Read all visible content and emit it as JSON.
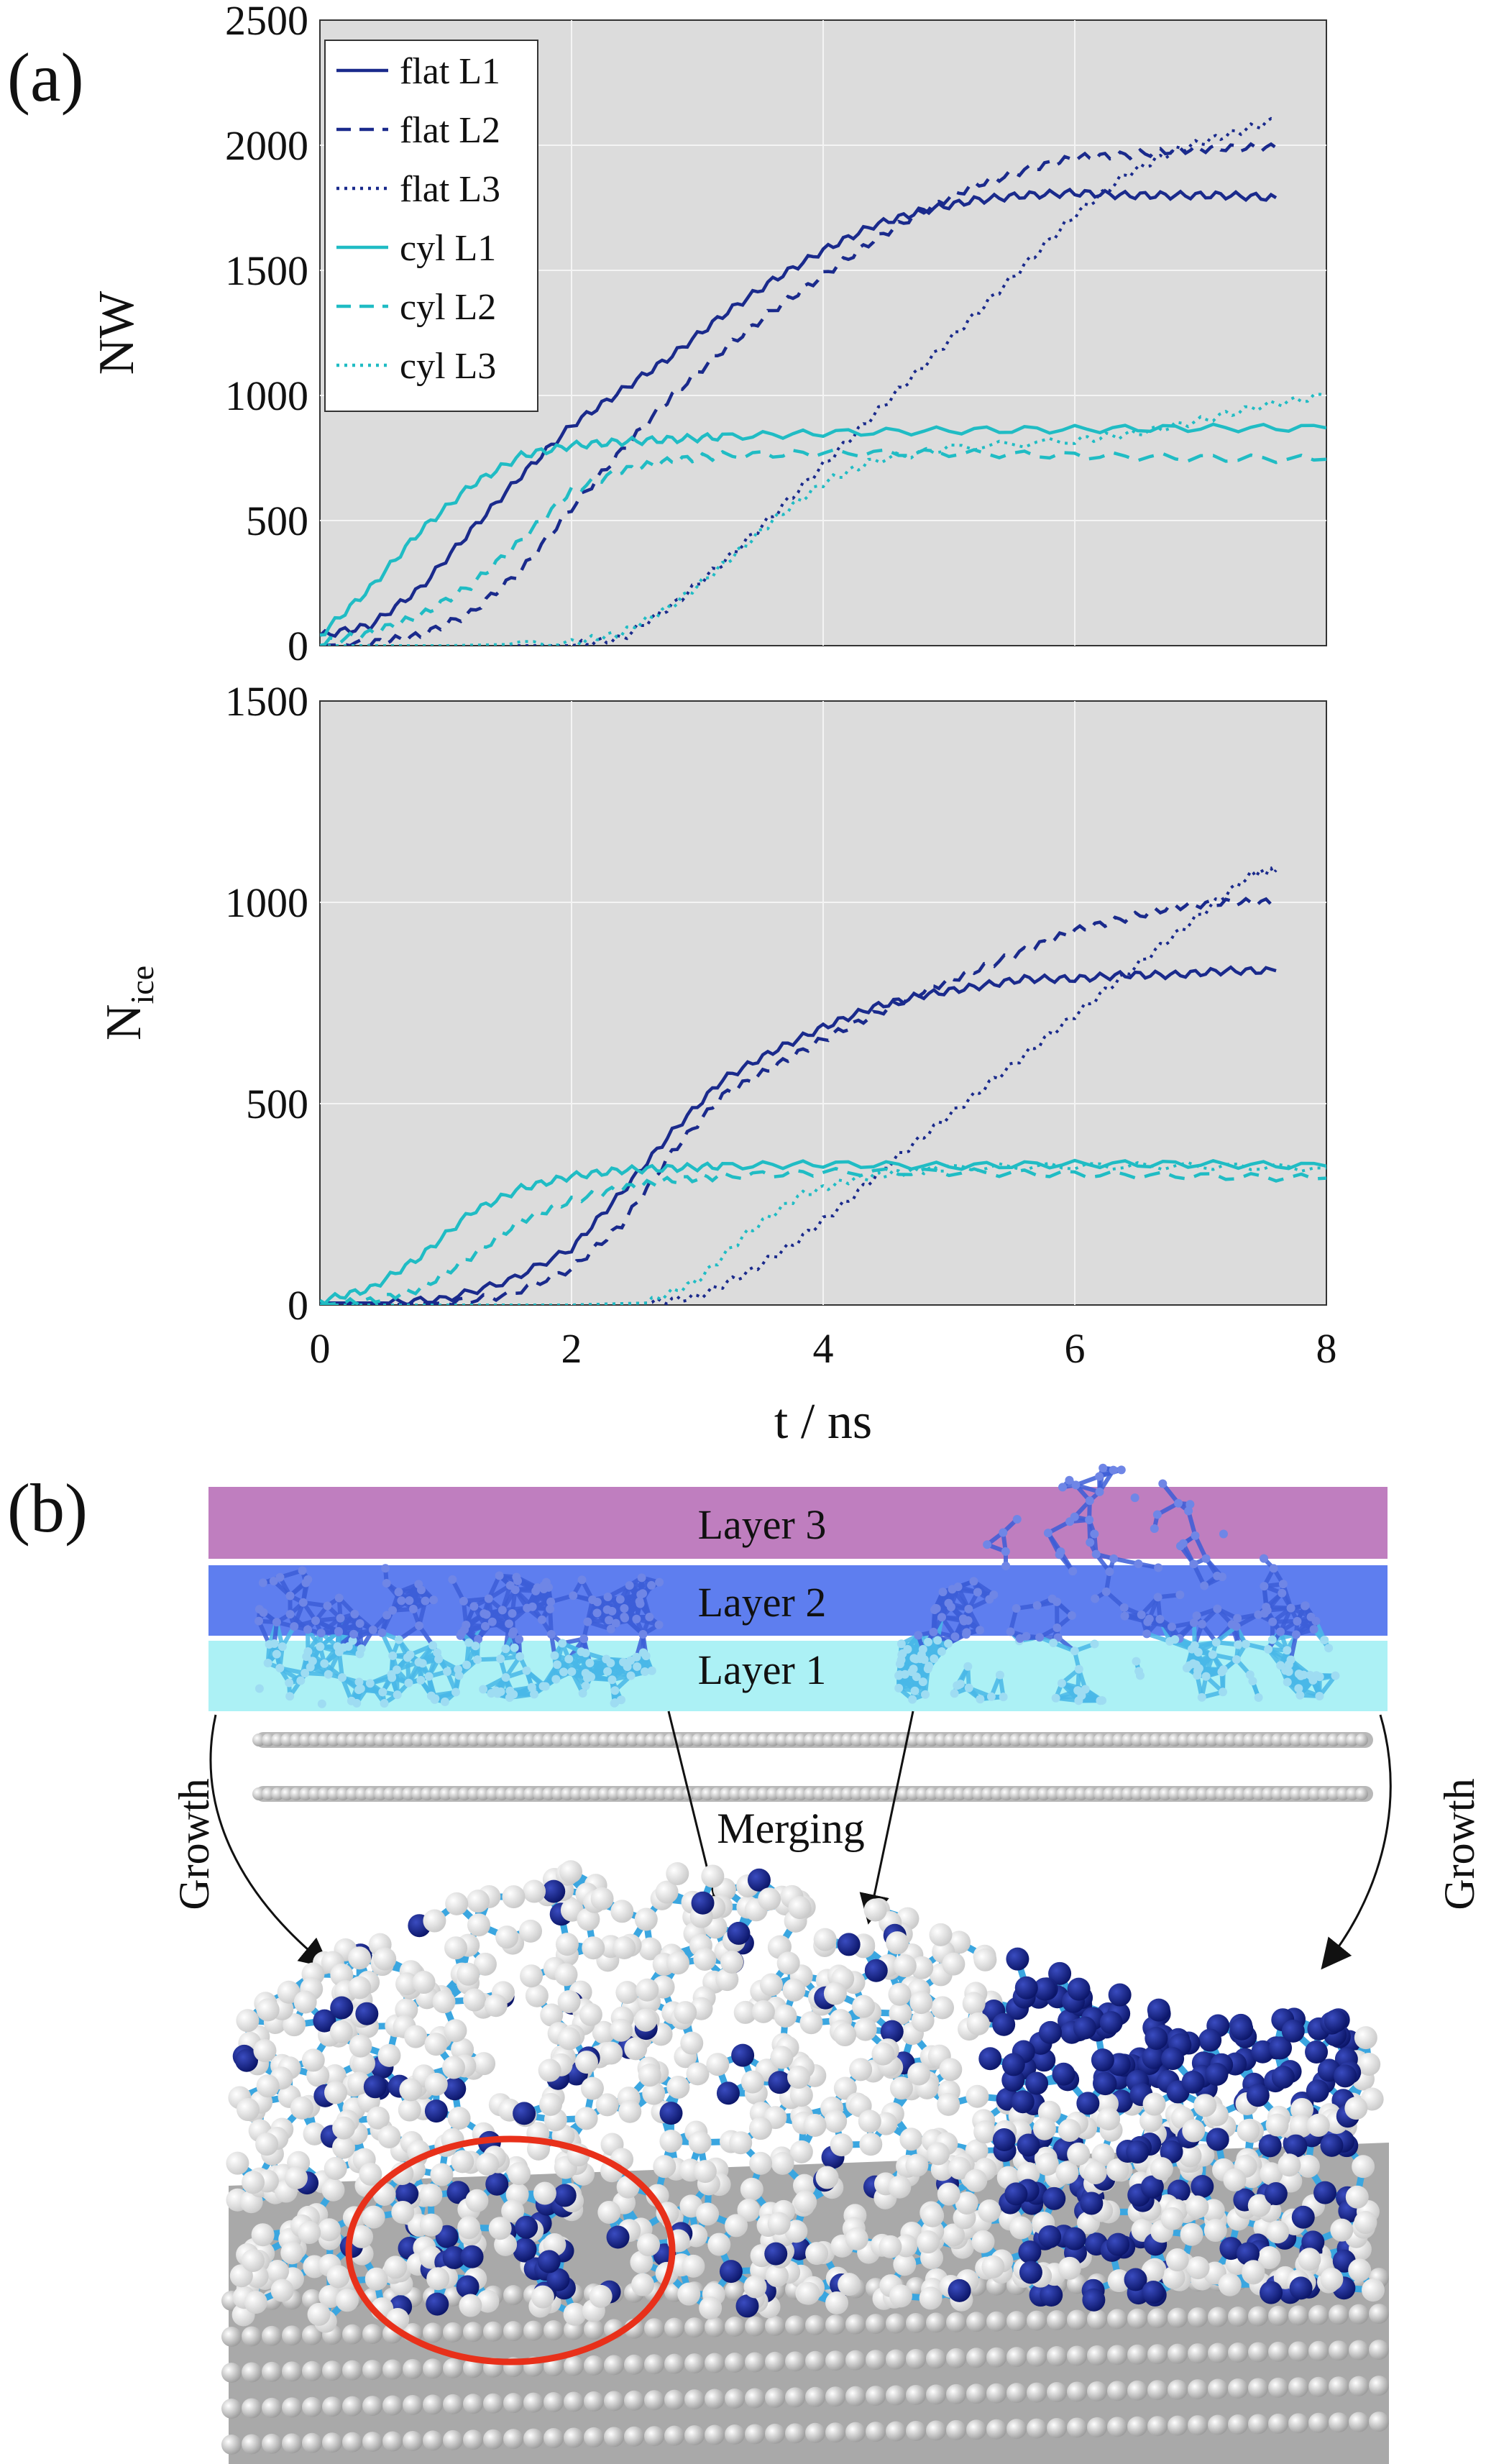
{
  "panel_a_label": "(a)",
  "panel_b_label": "(b)",
  "legend": [
    {
      "label": "flat L1",
      "color": "#1a2a8c",
      "style": "solid"
    },
    {
      "label": "flat L2",
      "color": "#1a2a8c",
      "style": "dashed"
    },
    {
      "label": "flat L3",
      "color": "#1a2a8c",
      "style": "dotted"
    },
    {
      "label": "cyl L1",
      "color": "#20bcc4",
      "style": "solid"
    },
    {
      "label": "cyl L2",
      "color": "#20bcc4",
      "style": "dashed"
    },
    {
      "label": "cyl L3",
      "color": "#20bcc4",
      "style": "dotted"
    }
  ],
  "chart_data": [
    {
      "type": "line",
      "ylabel": "NW",
      "xlim": [
        0,
        8
      ],
      "ylim": [
        0,
        2500
      ],
      "yticks": [
        "0",
        "500",
        "1000",
        "1500",
        "2000",
        "2500"
      ],
      "grid": true,
      "legend_position": "top-left",
      "series": [
        {
          "name": "flat L1",
          "x": [
            0,
            0.4,
            0.8,
            1.2,
            1.6,
            2.0,
            2.4,
            2.8,
            3.2,
            3.6,
            4.0,
            4.4,
            4.8,
            5.2,
            5.6,
            6.0,
            6.4,
            6.8,
            7.2,
            7.6
          ],
          "y": [
            40,
            80,
            230,
            460,
            680,
            880,
            1020,
            1160,
            1320,
            1460,
            1580,
            1680,
            1740,
            1780,
            1800,
            1810,
            1800,
            1800,
            1800,
            1790
          ]
        },
        {
          "name": "flat L2",
          "x": [
            0,
            0.4,
            0.8,
            1.2,
            1.6,
            2.0,
            2.4,
            2.8,
            3.2,
            3.6,
            4.0,
            4.4,
            4.8,
            5.2,
            5.6,
            6.0,
            6.4,
            6.8,
            7.2,
            7.6
          ],
          "y": [
            0,
            10,
            40,
            130,
            300,
            550,
            780,
            1000,
            1180,
            1340,
            1480,
            1620,
            1740,
            1840,
            1900,
            1950,
            1960,
            1980,
            1990,
            1990
          ]
        },
        {
          "name": "flat L3",
          "x": [
            0,
            1.0,
            2.0,
            2.4,
            2.8,
            3.2,
            3.6,
            4.0,
            4.4,
            4.8,
            5.2,
            5.6,
            6.0,
            6.4,
            6.8,
            7.2,
            7.6
          ],
          "y": [
            0,
            0,
            0,
            30,
            160,
            330,
            520,
            720,
            920,
            1120,
            1320,
            1520,
            1720,
            1880,
            1980,
            2040,
            2100
          ]
        },
        {
          "name": "cyl L1",
          "x": [
            0,
            0.4,
            0.8,
            1.2,
            1.6,
            2.0,
            2.4,
            2.8,
            3.2,
            4.0,
            5.0,
            6.0,
            7.0,
            8.0
          ],
          "y": [
            40,
            230,
            460,
            640,
            760,
            800,
            815,
            825,
            835,
            850,
            860,
            865,
            870,
            870
          ]
        },
        {
          "name": "cyl L2",
          "x": [
            0,
            0.4,
            0.8,
            1.2,
            1.6,
            2.0,
            2.4,
            2.8,
            3.2,
            4.0,
            5.0,
            6.0,
            7.0,
            8.0
          ],
          "y": [
            10,
            50,
            120,
            240,
            420,
            620,
            700,
            740,
            760,
            770,
            770,
            760,
            750,
            745
          ]
        },
        {
          "name": "cyl L3",
          "x": [
            0,
            1.0,
            2.0,
            2.4,
            2.8,
            3.2,
            3.6,
            4.0,
            4.4,
            5.0,
            6.0,
            6.5,
            7.0,
            7.5,
            8.0
          ],
          "y": [
            0,
            0,
            10,
            50,
            160,
            320,
            500,
            650,
            740,
            790,
            820,
            850,
            900,
            960,
            1000
          ]
        }
      ]
    },
    {
      "type": "line",
      "ylabel": "N",
      "ylabel_subscript": "ice",
      "xlabel": "t / ns",
      "xlim": [
        0,
        8
      ],
      "ylim": [
        0,
        1500
      ],
      "xticks": [
        "0",
        "2",
        "4",
        "6",
        "8"
      ],
      "yticks": [
        "0",
        "500",
        "1000",
        "1500"
      ],
      "grid": true,
      "series": [
        {
          "name": "flat L1",
          "x": [
            0,
            0.5,
            1.0,
            1.5,
            2.0,
            2.4,
            2.8,
            3.2,
            3.6,
            4.0,
            4.4,
            4.8,
            5.2,
            5.6,
            6.0,
            6.4,
            6.8,
            7.2,
            7.6
          ],
          "y": [
            5,
            5,
            15,
            60,
            140,
            280,
            430,
            560,
            630,
            690,
            740,
            770,
            790,
            810,
            810,
            820,
            820,
            830,
            830
          ]
        },
        {
          "name": "flat L2",
          "x": [
            0,
            0.5,
            1.0,
            1.5,
            2.0,
            2.4,
            2.8,
            3.2,
            3.6,
            4.0,
            4.4,
            4.8,
            5.2,
            5.6,
            6.0,
            6.4,
            6.8,
            7.2,
            7.6
          ],
          "y": [
            0,
            0,
            5,
            25,
            90,
            200,
            380,
            520,
            590,
            660,
            720,
            780,
            830,
            880,
            930,
            960,
            990,
            1000,
            1000
          ]
        },
        {
          "name": "flat L3",
          "x": [
            0,
            2.0,
            2.6,
            3.0,
            3.4,
            3.8,
            4.2,
            4.6,
            5.0,
            5.4,
            5.8,
            6.2,
            6.6,
            7.0,
            7.4,
            7.6
          ],
          "y": [
            0,
            0,
            5,
            20,
            80,
            160,
            260,
            370,
            470,
            570,
            670,
            770,
            870,
            970,
            1070,
            1080
          ]
        },
        {
          "name": "cyl L1",
          "x": [
            0,
            0.4,
            0.8,
            1.2,
            1.6,
            2.0,
            2.4,
            2.8,
            3.2,
            4.0,
            5.0,
            6.0,
            7.0,
            8.0
          ],
          "y": [
            10,
            40,
            120,
            230,
            290,
            320,
            335,
            340,
            345,
            350,
            345,
            350,
            350,
            345
          ]
        },
        {
          "name": "cyl L2",
          "x": [
            0,
            0.4,
            0.8,
            1.2,
            1.6,
            2.0,
            2.4,
            2.8,
            3.2,
            4.0,
            5.0,
            6.0,
            7.0,
            8.0
          ],
          "y": [
            0,
            10,
            40,
            120,
            210,
            260,
            290,
            310,
            320,
            330,
            330,
            325,
            320,
            315
          ]
        },
        {
          "name": "cyl L3",
          "x": [
            0,
            1.0,
            2.0,
            2.6,
            3.0,
            3.4,
            3.8,
            4.2,
            4.6,
            5.0,
            6.0,
            7.0,
            8.0
          ],
          "y": [
            0,
            0,
            0,
            5,
            60,
            180,
            270,
            310,
            330,
            340,
            345,
            345,
            340
          ]
        }
      ]
    }
  ],
  "schematic": {
    "layers": [
      "Layer 3",
      "Layer 2",
      "Layer 1"
    ],
    "annotations": {
      "growth_left": "Growth",
      "growth_right": "Growth",
      "merging": "Merging"
    }
  }
}
